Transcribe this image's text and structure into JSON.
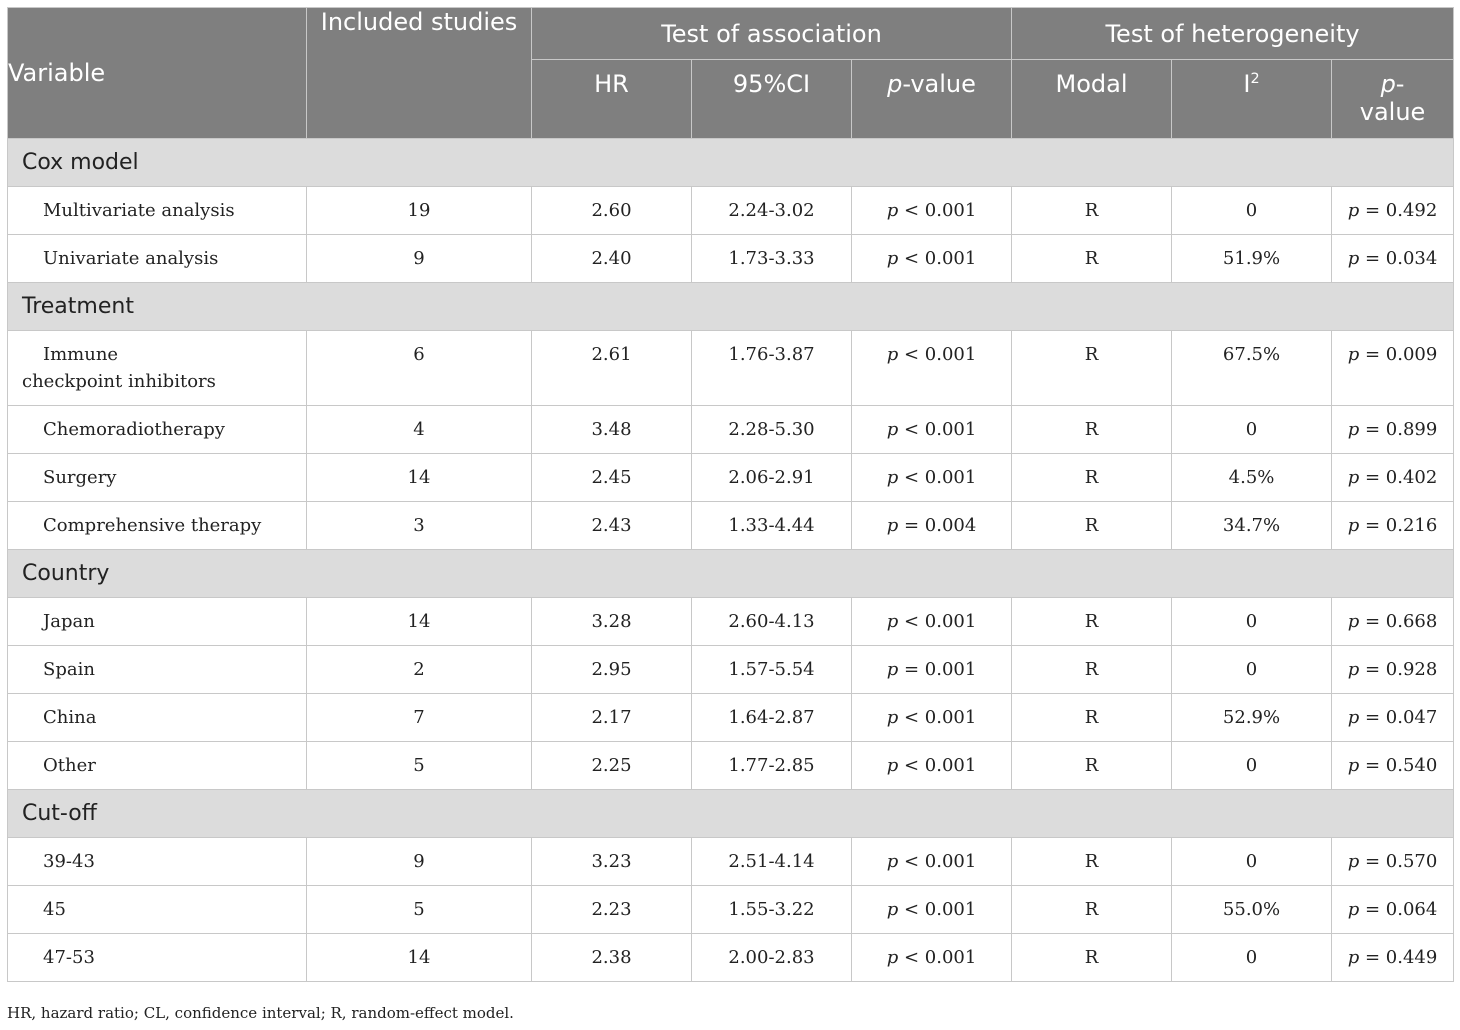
{
  "header": {
    "variable": "Variable",
    "included_studies": "Included studies",
    "test_of_association": "Test of association",
    "test_of_heterogeneity": "Test of heterogeneity",
    "hr": "HR",
    "ci": "95%CI",
    "p_italic": "p",
    "p_value_suffix": "-value",
    "modal": "Modal",
    "i_letter": "I",
    "i_sup": "2",
    "p_dash": "-",
    "value_word": "value"
  },
  "sections": [
    {
      "title": "Cox model",
      "rows": [
        {
          "label": "Multivariate analysis",
          "studies": "19",
          "hr": "2.60",
          "ci": "2.24-3.02",
          "assoc_op": "<",
          "assoc_p": "0.001",
          "model": "R",
          "i2": "0",
          "het_op": "=",
          "het_p": "0.492"
        },
        {
          "label": "Univariate analysis",
          "studies": "9",
          "hr": "2.40",
          "ci": "1.73-3.33",
          "assoc_op": "<",
          "assoc_p": "0.001",
          "model": "R",
          "i2": "51.9%",
          "het_op": "=",
          "het_p": "0.034"
        }
      ]
    },
    {
      "title": "Treatment",
      "rows": [
        {
          "label": "Immune",
          "label2": "checkpoint inhibitors",
          "studies": "6",
          "hr": "2.61",
          "ci": "1.76-3.87",
          "assoc_op": "<",
          "assoc_p": "0.001",
          "model": "R",
          "i2": "67.5%",
          "het_op": "=",
          "het_p": "0.009"
        },
        {
          "label": "Chemoradiotherapy",
          "studies": "4",
          "hr": "3.48",
          "ci": "2.28-5.30",
          "assoc_op": "<",
          "assoc_p": "0.001",
          "model": "R",
          "i2": "0",
          "het_op": "=",
          "het_p": "0.899"
        },
        {
          "label": "Surgery",
          "studies": "14",
          "hr": "2.45",
          "ci": "2.06-2.91",
          "assoc_op": "<",
          "assoc_p": "0.001",
          "model": "R",
          "i2": "4.5%",
          "het_op": "=",
          "het_p": "0.402"
        },
        {
          "label": "Comprehensive therapy",
          "studies": "3",
          "hr": "2.43",
          "ci": "1.33-4.44",
          "assoc_op": "=",
          "assoc_p": "0.004",
          "model": "R",
          "i2": "34.7%",
          "het_op": "=",
          "het_p": "0.216"
        }
      ]
    },
    {
      "title": "Country",
      "rows": [
        {
          "label": "Japan",
          "studies": "14",
          "hr": "3.28",
          "ci": "2.60-4.13",
          "assoc_op": "<",
          "assoc_p": "0.001",
          "model": "R",
          "i2": "0",
          "het_op": "=",
          "het_p": "0.668"
        },
        {
          "label": "Spain",
          "studies": "2",
          "hr": "2.95",
          "ci": "1.57-5.54",
          "assoc_op": "=",
          "assoc_p": "0.001",
          "model": "R",
          "i2": "0",
          "het_op": "=",
          "het_p": "0.928"
        },
        {
          "label": "China",
          "studies": "7",
          "hr": "2.17",
          "ci": "1.64-2.87",
          "assoc_op": "<",
          "assoc_p": "0.001",
          "model": "R",
          "i2": "52.9%",
          "het_op": "=",
          "het_p": "0.047"
        },
        {
          "label": "Other",
          "studies": "5",
          "hr": "2.25",
          "ci": "1.77-2.85",
          "assoc_op": "<",
          "assoc_p": "0.001",
          "model": "R",
          "i2": "0",
          "het_op": "=",
          "het_p": "0.540"
        }
      ]
    },
    {
      "title": "Cut-off",
      "rows": [
        {
          "label": "39-43",
          "studies": "9",
          "hr": "3.23",
          "ci": "2.51-4.14",
          "assoc_op": "<",
          "assoc_p": "0.001",
          "model": "R",
          "i2": "0",
          "het_op": "=",
          "het_p": "0.570"
        },
        {
          "label": "45",
          "studies": "5",
          "hr": "2.23",
          "ci": "1.55-3.22",
          "assoc_op": "<",
          "assoc_p": "0.001",
          "model": "R",
          "i2": "55.0%",
          "het_op": "=",
          "het_p": "0.064"
        },
        {
          "label": "47-53",
          "studies": "14",
          "hr": "2.38",
          "ci": "2.00-2.83",
          "assoc_op": "<",
          "assoc_p": "0.001",
          "model": "R",
          "i2": "0",
          "het_op": "=",
          "het_p": "0.449"
        }
      ]
    }
  ],
  "p_symbol": "p",
  "footnote": "HR, hazard ratio; CL, confidence interval; R, random-effect model."
}
